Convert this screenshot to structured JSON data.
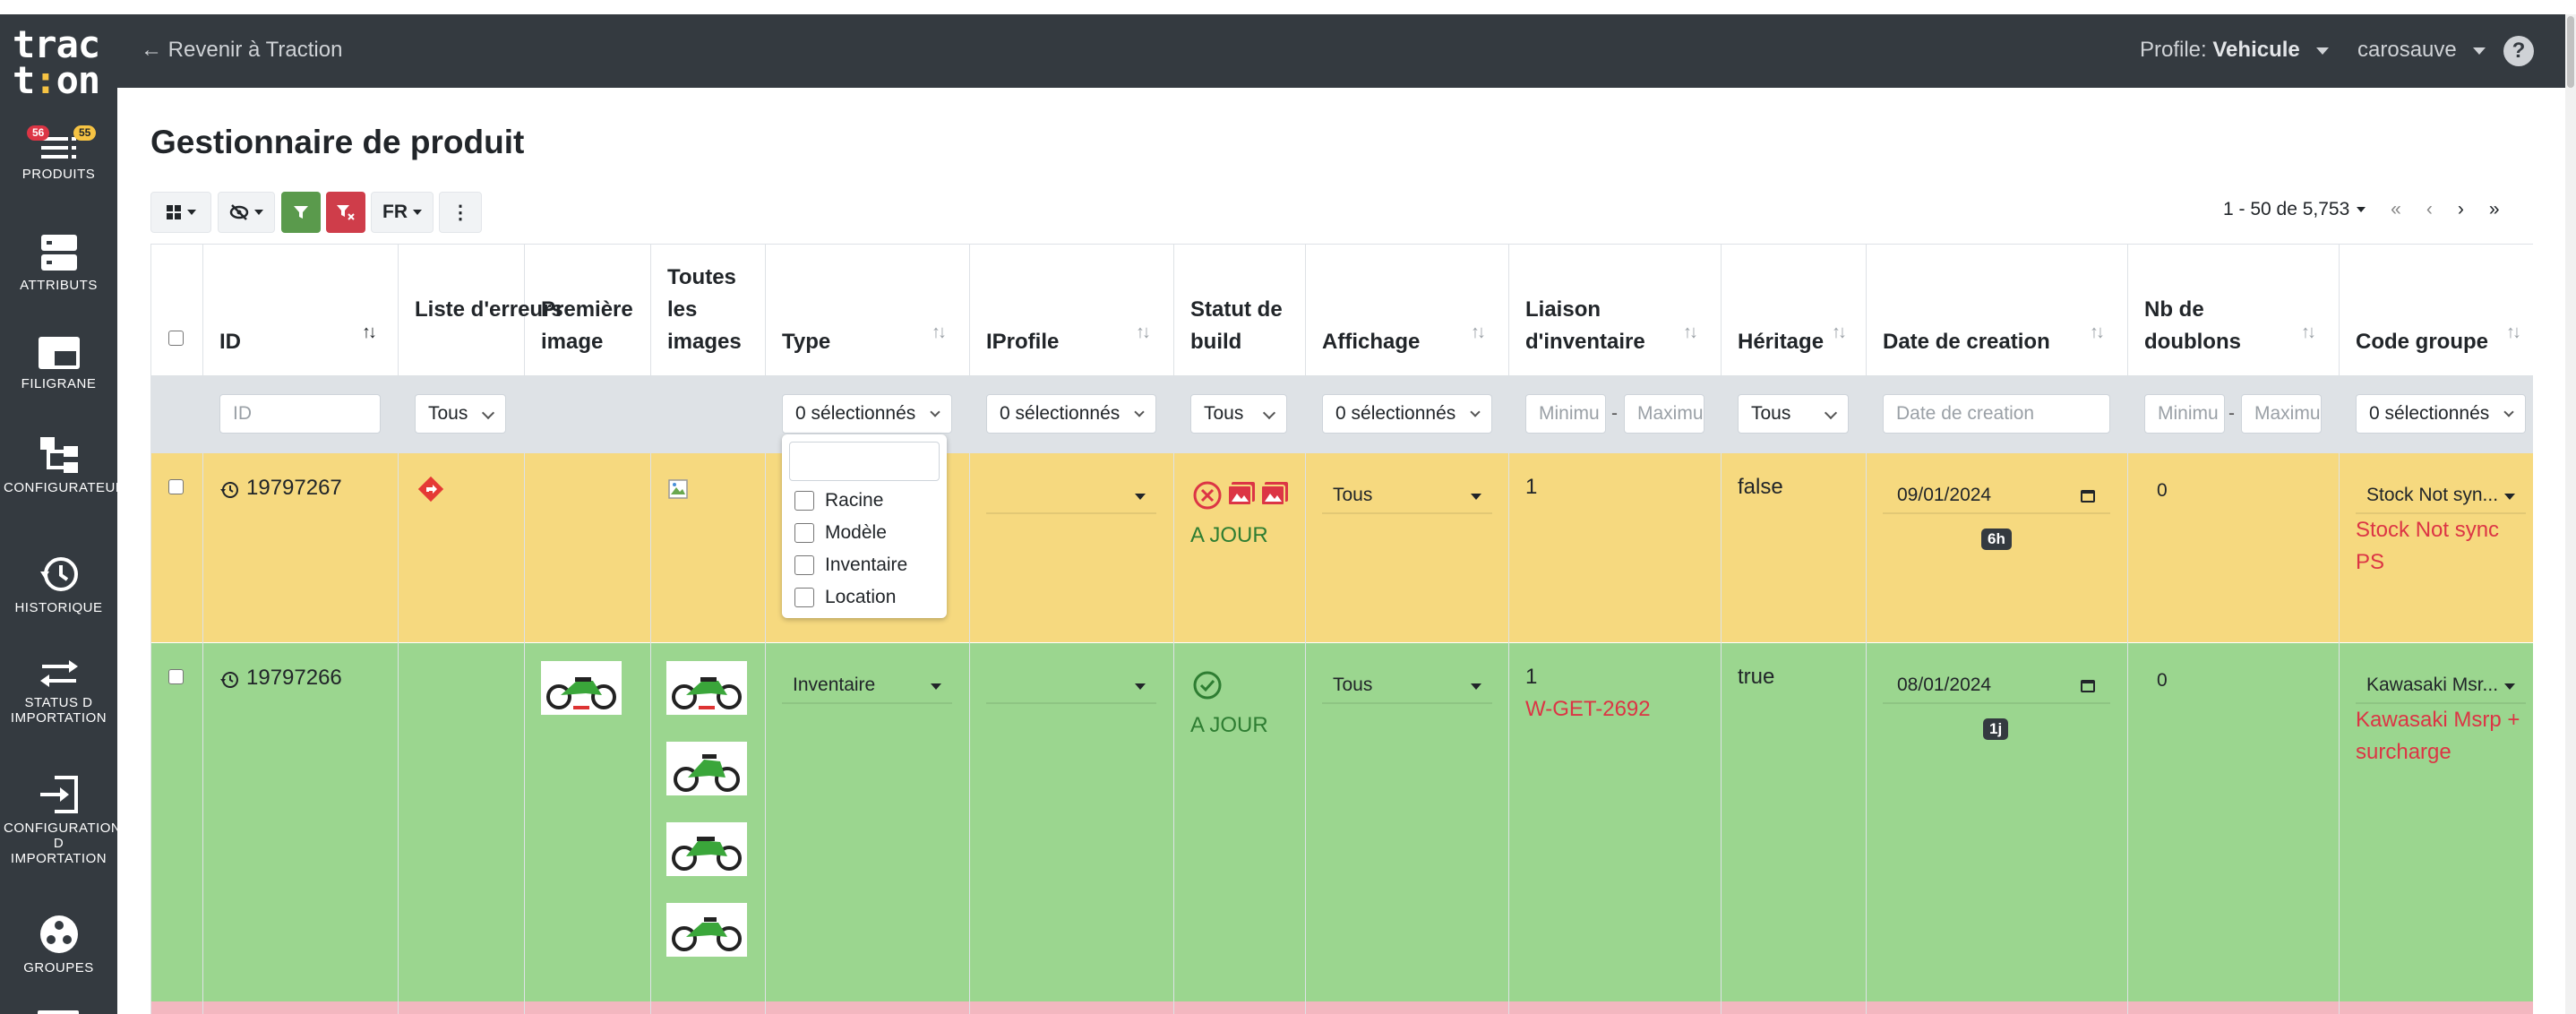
{
  "sidebar": {
    "logo_top": "trac",
    "logo_bottom_a": "t",
    "logo_bottom_colon": ":",
    "logo_bottom_b": "on",
    "badges": {
      "red": "56",
      "yellow": "55"
    },
    "items": [
      {
        "label": "PRODUITS",
        "icon": "list-icon"
      },
      {
        "label": "ATTRIBUTS",
        "icon": "server-icon"
      },
      {
        "label": "FILIGRANE",
        "icon": "watermark-icon"
      },
      {
        "label": "CONFIGURATEUR",
        "icon": "hierarchy-icon"
      },
      {
        "label": "HISTORIQUE",
        "icon": "history-icon"
      },
      {
        "label": "STATUS D IMPORTATION",
        "icon": "transfer-icon"
      },
      {
        "label": "CONFIGURATION D IMPORTATION",
        "icon": "import-icon"
      },
      {
        "label": "GROUPES",
        "icon": "groups-icon"
      }
    ]
  },
  "topbar": {
    "back_label": "Revenir à Traction",
    "profile_prefix": "Profile:",
    "profile_value": "Vehicule",
    "user": "carosauve",
    "help": "?"
  },
  "page": {
    "title": "Gestionnaire de produit",
    "language": "FR",
    "pagination": "1 - 50 de 5,753",
    "pager_first": "«",
    "pager_prev": "‹",
    "pager_next": "›",
    "pager_last": "»"
  },
  "columns": [
    "ID",
    "Liste d'erreurs",
    "Première image",
    "Toutes les images",
    "Type",
    "IProfile",
    "Statut de build",
    "Affichage",
    "Liaison d'inventaire",
    "Héritage",
    "Date de creation",
    "Nb de doublons",
    "Code groupe"
  ],
  "filters": {
    "id_placeholder": "ID",
    "errors": "Tous",
    "type": "0 sélectionnés",
    "iprofile": "0 sélectionnés",
    "build": "Tous",
    "affichage": "0 sélectionnés",
    "min": "Minimu",
    "max": "Maximu",
    "heritage": "Tous",
    "date_placeholder": "Date de creation",
    "code_groupe": "0 sélectionnés"
  },
  "type_dropdown": {
    "options": [
      "Racine",
      "Modèle",
      "Inventaire",
      "Location"
    ]
  },
  "rows": [
    {
      "id": "19797267",
      "type": "",
      "build_status": "A JOUR",
      "affichage": "Tous",
      "liaison": "1",
      "liaison_link": "",
      "heritage": "false",
      "date": "09/01/2024",
      "date_badge": "6h",
      "doublons": "0",
      "code_groupe": "Stock Not syn...",
      "code_groupe_full": "Stock Not sync PS"
    },
    {
      "id": "19797266",
      "type": "Inventaire",
      "build_status": "A JOUR",
      "affichage": "Tous",
      "liaison": "1",
      "liaison_link": "W-GET-2692",
      "heritage": "true",
      "date": "08/01/2024",
      "date_badge": "1j",
      "doublons": "0",
      "code_groupe": "Kawasaki Msr...",
      "code_groupe_full": "Kawasaki Msrp + surcharge"
    }
  ],
  "colors": {
    "sidebar": "#343a40",
    "row_warning": "#f6d97f",
    "row_success": "#9bd68f",
    "row_danger": "#f3b7c0",
    "error_red": "#dc3545",
    "ok_green": "#2e7d32"
  }
}
